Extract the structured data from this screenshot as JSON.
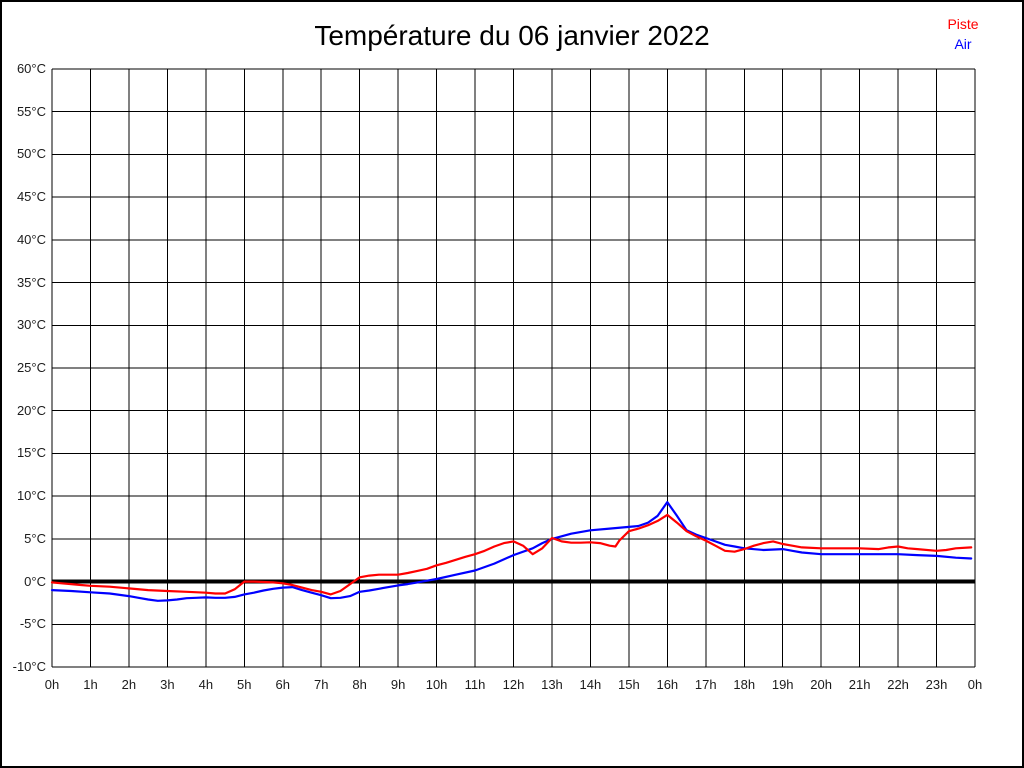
{
  "page": {
    "title": "Température du 06 janvier 2022"
  },
  "legend": {
    "items": [
      {
        "label": "Piste",
        "color": "#ff0000"
      },
      {
        "label": "Air",
        "color": "#0000ff"
      }
    ]
  },
  "chart_data": {
    "type": "line",
    "title": "Température du 06 janvier 2022",
    "xlabel": "",
    "ylabel": "",
    "x_unit": "hours",
    "xlim_hours": [
      0,
      24
    ],
    "ylim": [
      -10,
      60
    ],
    "y_tick_step": 5,
    "x_tick_step_hours": 1,
    "x_tick_labels": [
      "0h",
      "1h",
      "2h",
      "3h",
      "4h",
      "5h",
      "6h",
      "7h",
      "8h",
      "9h",
      "10h",
      "11h",
      "12h",
      "13h",
      "14h",
      "15h",
      "16h",
      "17h",
      "18h",
      "19h",
      "20h",
      "21h",
      "22h",
      "23h",
      "0h"
    ],
    "y_tick_labels": [
      "60°C",
      "55°C",
      "50°C",
      "45°C",
      "40°C",
      "35°C",
      "30°C",
      "25°C",
      "20°C",
      "15°C",
      "10°C",
      "5°C",
      "0°C",
      "-5°C",
      "-10°C"
    ],
    "grid": true,
    "grid_color": "#000000",
    "background": "#ffffff",
    "zero_line": {
      "value": 0,
      "color": "#000000",
      "width": 4
    },
    "legend_position": "top-right",
    "series": [
      {
        "name": "Piste",
        "color": "#ff0000",
        "points_hour_degC": [
          [
            0,
            -0.1
          ],
          [
            0.25,
            -0.2
          ],
          [
            0.5,
            -0.3
          ],
          [
            0.75,
            -0.4
          ],
          [
            1,
            -0.5
          ],
          [
            1.5,
            -0.6
          ],
          [
            2,
            -0.8
          ],
          [
            2.5,
            -1
          ],
          [
            3,
            -1.1
          ],
          [
            3.5,
            -1.2
          ],
          [
            4,
            -1.3
          ],
          [
            4.25,
            -1.4
          ],
          [
            4.5,
            -1.4
          ],
          [
            4.75,
            -0.9
          ],
          [
            5,
            0
          ],
          [
            5.25,
            0
          ],
          [
            5.5,
            -0.05
          ],
          [
            5.75,
            -0.1
          ],
          [
            6,
            -0.2
          ],
          [
            6.25,
            -0.4
          ],
          [
            6.5,
            -0.7
          ],
          [
            6.75,
            -1
          ],
          [
            7,
            -1.2
          ],
          [
            7.25,
            -1.5
          ],
          [
            7.5,
            -1.1
          ],
          [
            7.75,
            -0.3
          ],
          [
            8,
            0.5
          ],
          [
            8.25,
            0.7
          ],
          [
            8.5,
            0.8
          ],
          [
            8.75,
            0.8
          ],
          [
            9,
            0.8
          ],
          [
            9.25,
            1
          ],
          [
            9.5,
            1.25
          ],
          [
            9.75,
            1.5
          ],
          [
            10,
            1.9
          ],
          [
            10.25,
            2.2
          ],
          [
            10.5,
            2.55
          ],
          [
            10.75,
            2.9
          ],
          [
            11,
            3.2
          ],
          [
            11.25,
            3.6
          ],
          [
            11.5,
            4.1
          ],
          [
            11.75,
            4.5
          ],
          [
            12,
            4.7
          ],
          [
            12.25,
            4.2
          ],
          [
            12.5,
            3.2
          ],
          [
            12.75,
            3.9
          ],
          [
            13,
            5.1
          ],
          [
            13.25,
            4.7
          ],
          [
            13.5,
            4.55
          ],
          [
            13.75,
            4.55
          ],
          [
            14,
            4.6
          ],
          [
            14.25,
            4.5
          ],
          [
            14.5,
            4.2
          ],
          [
            14.65,
            4.1
          ],
          [
            14.75,
            4.8
          ],
          [
            15,
            5.9
          ],
          [
            15.25,
            6.2
          ],
          [
            15.5,
            6.6
          ],
          [
            15.75,
            7.1
          ],
          [
            16,
            7.8
          ],
          [
            16.25,
            6.9
          ],
          [
            16.5,
            5.9
          ],
          [
            16.75,
            5.3
          ],
          [
            17,
            4.8
          ],
          [
            17.25,
            4.2
          ],
          [
            17.5,
            3.6
          ],
          [
            17.75,
            3.5
          ],
          [
            18,
            3.8
          ],
          [
            18.25,
            4.2
          ],
          [
            18.5,
            4.5
          ],
          [
            18.75,
            4.7
          ],
          [
            19,
            4.4
          ],
          [
            19.25,
            4.2
          ],
          [
            19.5,
            4
          ],
          [
            20,
            3.9
          ],
          [
            20.5,
            3.9
          ],
          [
            21,
            3.9
          ],
          [
            21.5,
            3.8
          ],
          [
            21.75,
            4
          ],
          [
            22,
            4.1
          ],
          [
            22.25,
            3.9
          ],
          [
            22.5,
            3.8
          ],
          [
            23,
            3.6
          ],
          [
            23.25,
            3.7
          ],
          [
            23.5,
            3.9
          ],
          [
            23.9,
            4
          ]
        ]
      },
      {
        "name": "Air",
        "color": "#0000ff",
        "points_hour_degC": [
          [
            0,
            -1
          ],
          [
            0.5,
            -1.1
          ],
          [
            1,
            -1.25
          ],
          [
            1.5,
            -1.4
          ],
          [
            2,
            -1.7
          ],
          [
            2.25,
            -1.9
          ],
          [
            2.5,
            -2.1
          ],
          [
            2.75,
            -2.25
          ],
          [
            3,
            -2.2
          ],
          [
            3.25,
            -2.1
          ],
          [
            3.5,
            -1.95
          ],
          [
            3.75,
            -1.9
          ],
          [
            4,
            -1.85
          ],
          [
            4.25,
            -1.9
          ],
          [
            4.5,
            -1.9
          ],
          [
            4.75,
            -1.8
          ],
          [
            5,
            -1.5
          ],
          [
            5.25,
            -1.3
          ],
          [
            5.5,
            -1.05
          ],
          [
            5.75,
            -0.85
          ],
          [
            6,
            -0.7
          ],
          [
            6.25,
            -0.65
          ],
          [
            6.5,
            -1
          ],
          [
            6.75,
            -1.3
          ],
          [
            7,
            -1.6
          ],
          [
            7.25,
            -1.95
          ],
          [
            7.5,
            -1.9
          ],
          [
            7.75,
            -1.7
          ],
          [
            8,
            -1.2
          ],
          [
            8.25,
            -1.05
          ],
          [
            8.5,
            -0.85
          ],
          [
            8.75,
            -0.65
          ],
          [
            9,
            -0.45
          ],
          [
            9.25,
            -0.3
          ],
          [
            9.5,
            -0.1
          ],
          [
            9.75,
            0.1
          ],
          [
            10,
            0.3
          ],
          [
            10.5,
            0.8
          ],
          [
            11,
            1.3
          ],
          [
            11.5,
            2.1
          ],
          [
            12,
            3.1
          ],
          [
            12.5,
            3.9
          ],
          [
            12.75,
            4.5
          ],
          [
            13,
            5
          ],
          [
            13.25,
            5.3
          ],
          [
            13.5,
            5.6
          ],
          [
            14,
            6
          ],
          [
            14.5,
            6.2
          ],
          [
            15,
            6.4
          ],
          [
            15.25,
            6.5
          ],
          [
            15.5,
            6.9
          ],
          [
            15.75,
            7.7
          ],
          [
            16,
            9.3
          ],
          [
            16.25,
            7.7
          ],
          [
            16.5,
            6
          ],
          [
            16.75,
            5.5
          ],
          [
            17,
            5.1
          ],
          [
            17.25,
            4.7
          ],
          [
            17.5,
            4.3
          ],
          [
            17.75,
            4.1
          ],
          [
            18,
            3.9
          ],
          [
            18.5,
            3.7
          ],
          [
            19,
            3.8
          ],
          [
            19.25,
            3.6
          ],
          [
            19.5,
            3.4
          ],
          [
            20,
            3.2
          ],
          [
            20.5,
            3.2
          ],
          [
            21,
            3.2
          ],
          [
            21.5,
            3.2
          ],
          [
            22,
            3.2
          ],
          [
            22.5,
            3.1
          ],
          [
            23,
            3
          ],
          [
            23.5,
            2.8
          ],
          [
            23.9,
            2.7
          ]
        ]
      }
    ]
  }
}
